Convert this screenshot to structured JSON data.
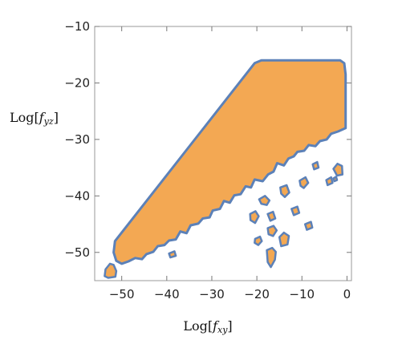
{
  "chart_data": {
    "type": "area",
    "title": "",
    "xlabel_prefix": "Log[",
    "xlabel_var": "f",
    "xlabel_sub": "xy",
    "xlabel_suffix": "]",
    "ylabel_prefix": "Log[",
    "ylabel_var": "f",
    "ylabel_sub": "yz",
    "ylabel_suffix": "]",
    "xlim": [
      -56,
      1
    ],
    "ylim": [
      -55,
      -10
    ],
    "xticks": [
      -50,
      -40,
      -30,
      -20,
      -10,
      0
    ],
    "yticks": [
      -10,
      -20,
      -30,
      -40,
      -50
    ],
    "xtick_labels": [
      "−50",
      "−40",
      "−30",
      "−20",
      "−10",
      "0"
    ],
    "ytick_labels": [
      "−10",
      "−20",
      "−30",
      "−40",
      "−50"
    ],
    "grid": false,
    "fill_color": "#F3A853",
    "edge_color": "#5C81B8",
    "main_region": [
      [
        -51.5,
        -48.0
      ],
      [
        -20.5,
        -16.5
      ],
      [
        -19.0,
        -16.0
      ],
      [
        -1.5,
        -16.0
      ],
      [
        -0.6,
        -16.5
      ],
      [
        -0.3,
        -18.5
      ],
      [
        -0.3,
        -28.0
      ],
      [
        -2.0,
        -28.6
      ],
      [
        -3.5,
        -29.0
      ],
      [
        -4.5,
        -30.0
      ],
      [
        -6.0,
        -30.3
      ],
      [
        -7.0,
        -31.2
      ],
      [
        -8.5,
        -31.0
      ],
      [
        -9.5,
        -32.0
      ],
      [
        -11.0,
        -32.2
      ],
      [
        -11.8,
        -33.0
      ],
      [
        -13.0,
        -33.4
      ],
      [
        -14.0,
        -34.6
      ],
      [
        -15.5,
        -34.2
      ],
      [
        -16.3,
        -35.7
      ],
      [
        -17.5,
        -36.2
      ],
      [
        -18.7,
        -37.4
      ],
      [
        -20.5,
        -37.1
      ],
      [
        -21.3,
        -38.5
      ],
      [
        -22.5,
        -38.3
      ],
      [
        -23.6,
        -39.7
      ],
      [
        -25.0,
        -39.9
      ],
      [
        -26.0,
        -41.2
      ],
      [
        -27.3,
        -40.9
      ],
      [
        -28.2,
        -42.3
      ],
      [
        -29.8,
        -42.6
      ],
      [
        -30.5,
        -43.8
      ],
      [
        -32.0,
        -44.0
      ],
      [
        -33.0,
        -44.9
      ],
      [
        -34.7,
        -45.2
      ],
      [
        -35.6,
        -46.6
      ],
      [
        -37.0,
        -46.3
      ],
      [
        -38.0,
        -47.7
      ],
      [
        -39.5,
        -47.9
      ],
      [
        -40.5,
        -48.7
      ],
      [
        -42.0,
        -48.9
      ],
      [
        -43.0,
        -49.9
      ],
      [
        -44.5,
        -50.3
      ],
      [
        -45.5,
        -51.2
      ],
      [
        -47.0,
        -51.0
      ],
      [
        -48.5,
        -51.6
      ],
      [
        -50.0,
        -52.0
      ],
      [
        -51.2,
        -51.5
      ],
      [
        -51.8,
        -50.0
      ]
    ],
    "islands": [
      [
        [
          -53.8,
          -54.2
        ],
        [
          -53.6,
          -53.0
        ],
        [
          -52.6,
          -52.0
        ],
        [
          -51.8,
          -52.2
        ],
        [
          -51.2,
          -53.3
        ],
        [
          -51.4,
          -54.3
        ],
        [
          -53.0,
          -54.5
        ]
      ],
      [
        [
          -19.5,
          -40.6
        ],
        [
          -18.2,
          -40.0
        ],
        [
          -17.2,
          -40.8
        ],
        [
          -17.8,
          -41.6
        ],
        [
          -19.0,
          -41.4
        ]
      ],
      [
        [
          -14.8,
          -38.5
        ],
        [
          -13.4,
          -38.1
        ],
        [
          -12.8,
          -39.4
        ],
        [
          -13.8,
          -40.2
        ],
        [
          -14.6,
          -39.6
        ]
      ],
      [
        [
          -10.5,
          -37.3
        ],
        [
          -9.2,
          -36.7
        ],
        [
          -8.6,
          -37.7
        ],
        [
          -9.6,
          -38.6
        ],
        [
          -10.3,
          -38.2
        ]
      ],
      [
        [
          -7.6,
          -34.4
        ],
        [
          -6.6,
          -34.0
        ],
        [
          -6.3,
          -35.0
        ],
        [
          -7.3,
          -35.3
        ]
      ],
      [
        [
          -3.0,
          -35.2
        ],
        [
          -2.1,
          -34.3
        ],
        [
          -1.1,
          -34.7
        ],
        [
          -1.0,
          -36.2
        ],
        [
          -2.2,
          -36.4
        ]
      ],
      [
        [
          -4.6,
          -37.2
        ],
        [
          -3.5,
          -36.7
        ],
        [
          -3.2,
          -37.7
        ],
        [
          -4.3,
          -38.1
        ]
      ],
      [
        [
          -21.5,
          -43.2
        ],
        [
          -20.3,
          -42.7
        ],
        [
          -19.6,
          -43.6
        ],
        [
          -20.4,
          -44.8
        ],
        [
          -21.4,
          -44.3
        ]
      ],
      [
        [
          -17.6,
          -43.2
        ],
        [
          -16.4,
          -42.8
        ],
        [
          -15.9,
          -44.0
        ],
        [
          -17.0,
          -44.4
        ]
      ],
      [
        [
          -12.3,
          -42.3
        ],
        [
          -11.0,
          -41.9
        ],
        [
          -10.6,
          -43.0
        ],
        [
          -11.8,
          -43.4
        ]
      ],
      [
        [
          -9.3,
          -45.0
        ],
        [
          -8.0,
          -44.6
        ],
        [
          -7.7,
          -45.6
        ],
        [
          -8.9,
          -46.0
        ]
      ],
      [
        [
          -17.6,
          -45.7
        ],
        [
          -16.3,
          -45.3
        ],
        [
          -15.6,
          -46.1
        ],
        [
          -16.4,
          -47.1
        ],
        [
          -17.4,
          -46.8
        ]
      ],
      [
        [
          -15.0,
          -47.3
        ],
        [
          -14.0,
          -46.5
        ],
        [
          -12.9,
          -47.1
        ],
        [
          -13.2,
          -48.6
        ],
        [
          -14.6,
          -48.9
        ]
      ],
      [
        [
          -20.4,
          -47.6
        ],
        [
          -19.3,
          -47.2
        ],
        [
          -18.9,
          -48.0
        ],
        [
          -19.7,
          -48.7
        ],
        [
          -20.5,
          -48.3
        ]
      ],
      [
        [
          -17.8,
          -49.6
        ],
        [
          -16.6,
          -49.2
        ],
        [
          -15.8,
          -49.9
        ],
        [
          -16.0,
          -51.3
        ],
        [
          -16.9,
          -52.6
        ],
        [
          -17.6,
          -51.7
        ]
      ],
      [
        [
          -39.5,
          -50.2
        ],
        [
          -38.3,
          -49.8
        ],
        [
          -38.0,
          -50.6
        ],
        [
          -39.2,
          -50.9
        ]
      ],
      [
        [
          -3.0,
          -36.9
        ],
        [
          -2.4,
          -36.6
        ],
        [
          -2.2,
          -37.2
        ],
        [
          -2.8,
          -37.4
        ]
      ]
    ]
  }
}
